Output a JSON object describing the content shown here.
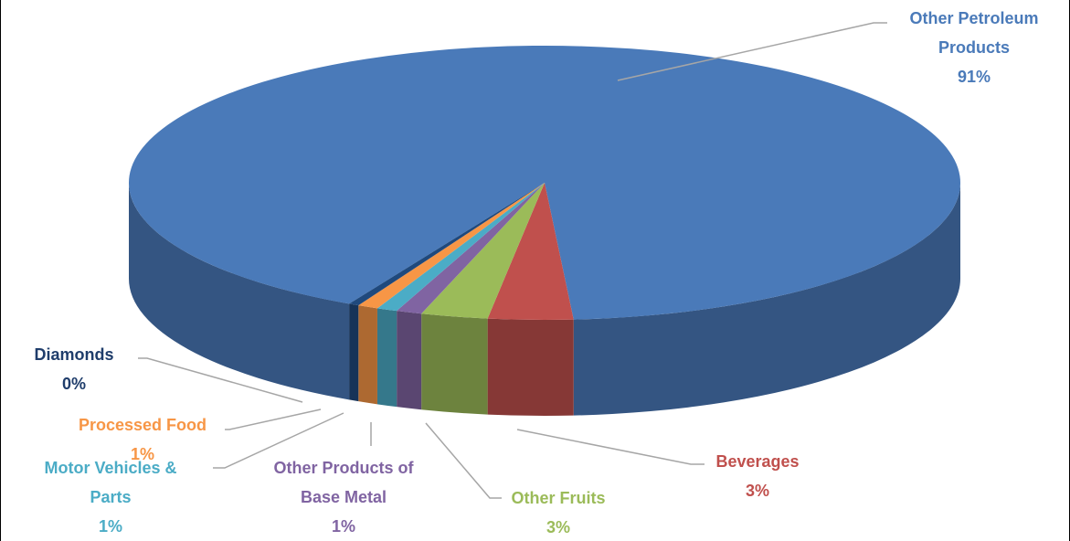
{
  "chart_data": {
    "type": "pie3d",
    "categories": [
      "Other Petroleum Products",
      "Beverages",
      "Other Fruits",
      "Other Products of Base Metal",
      "Motor Vehicles & Parts",
      "Processed Food",
      "Diamonds"
    ],
    "values": [
      91.1,
      3.3,
      2.6,
      1.0,
      0.8,
      0.8,
      0.4
    ],
    "value_labels": [
      "91%",
      "3%",
      "3%",
      "1%",
      "1%",
      "1%",
      "0%"
    ],
    "colors": [
      "#4a7ab9",
      "#c0504d",
      "#9bbb59",
      "#8064a2",
      "#4bacc6",
      "#f79646",
      "#1f497d"
    ],
    "label_colors": [
      "#4a7ab9",
      "#c0504d",
      "#9bbb59",
      "#8064a2",
      "#4bacc6",
      "#f79646",
      "#1f3d6b"
    ]
  }
}
